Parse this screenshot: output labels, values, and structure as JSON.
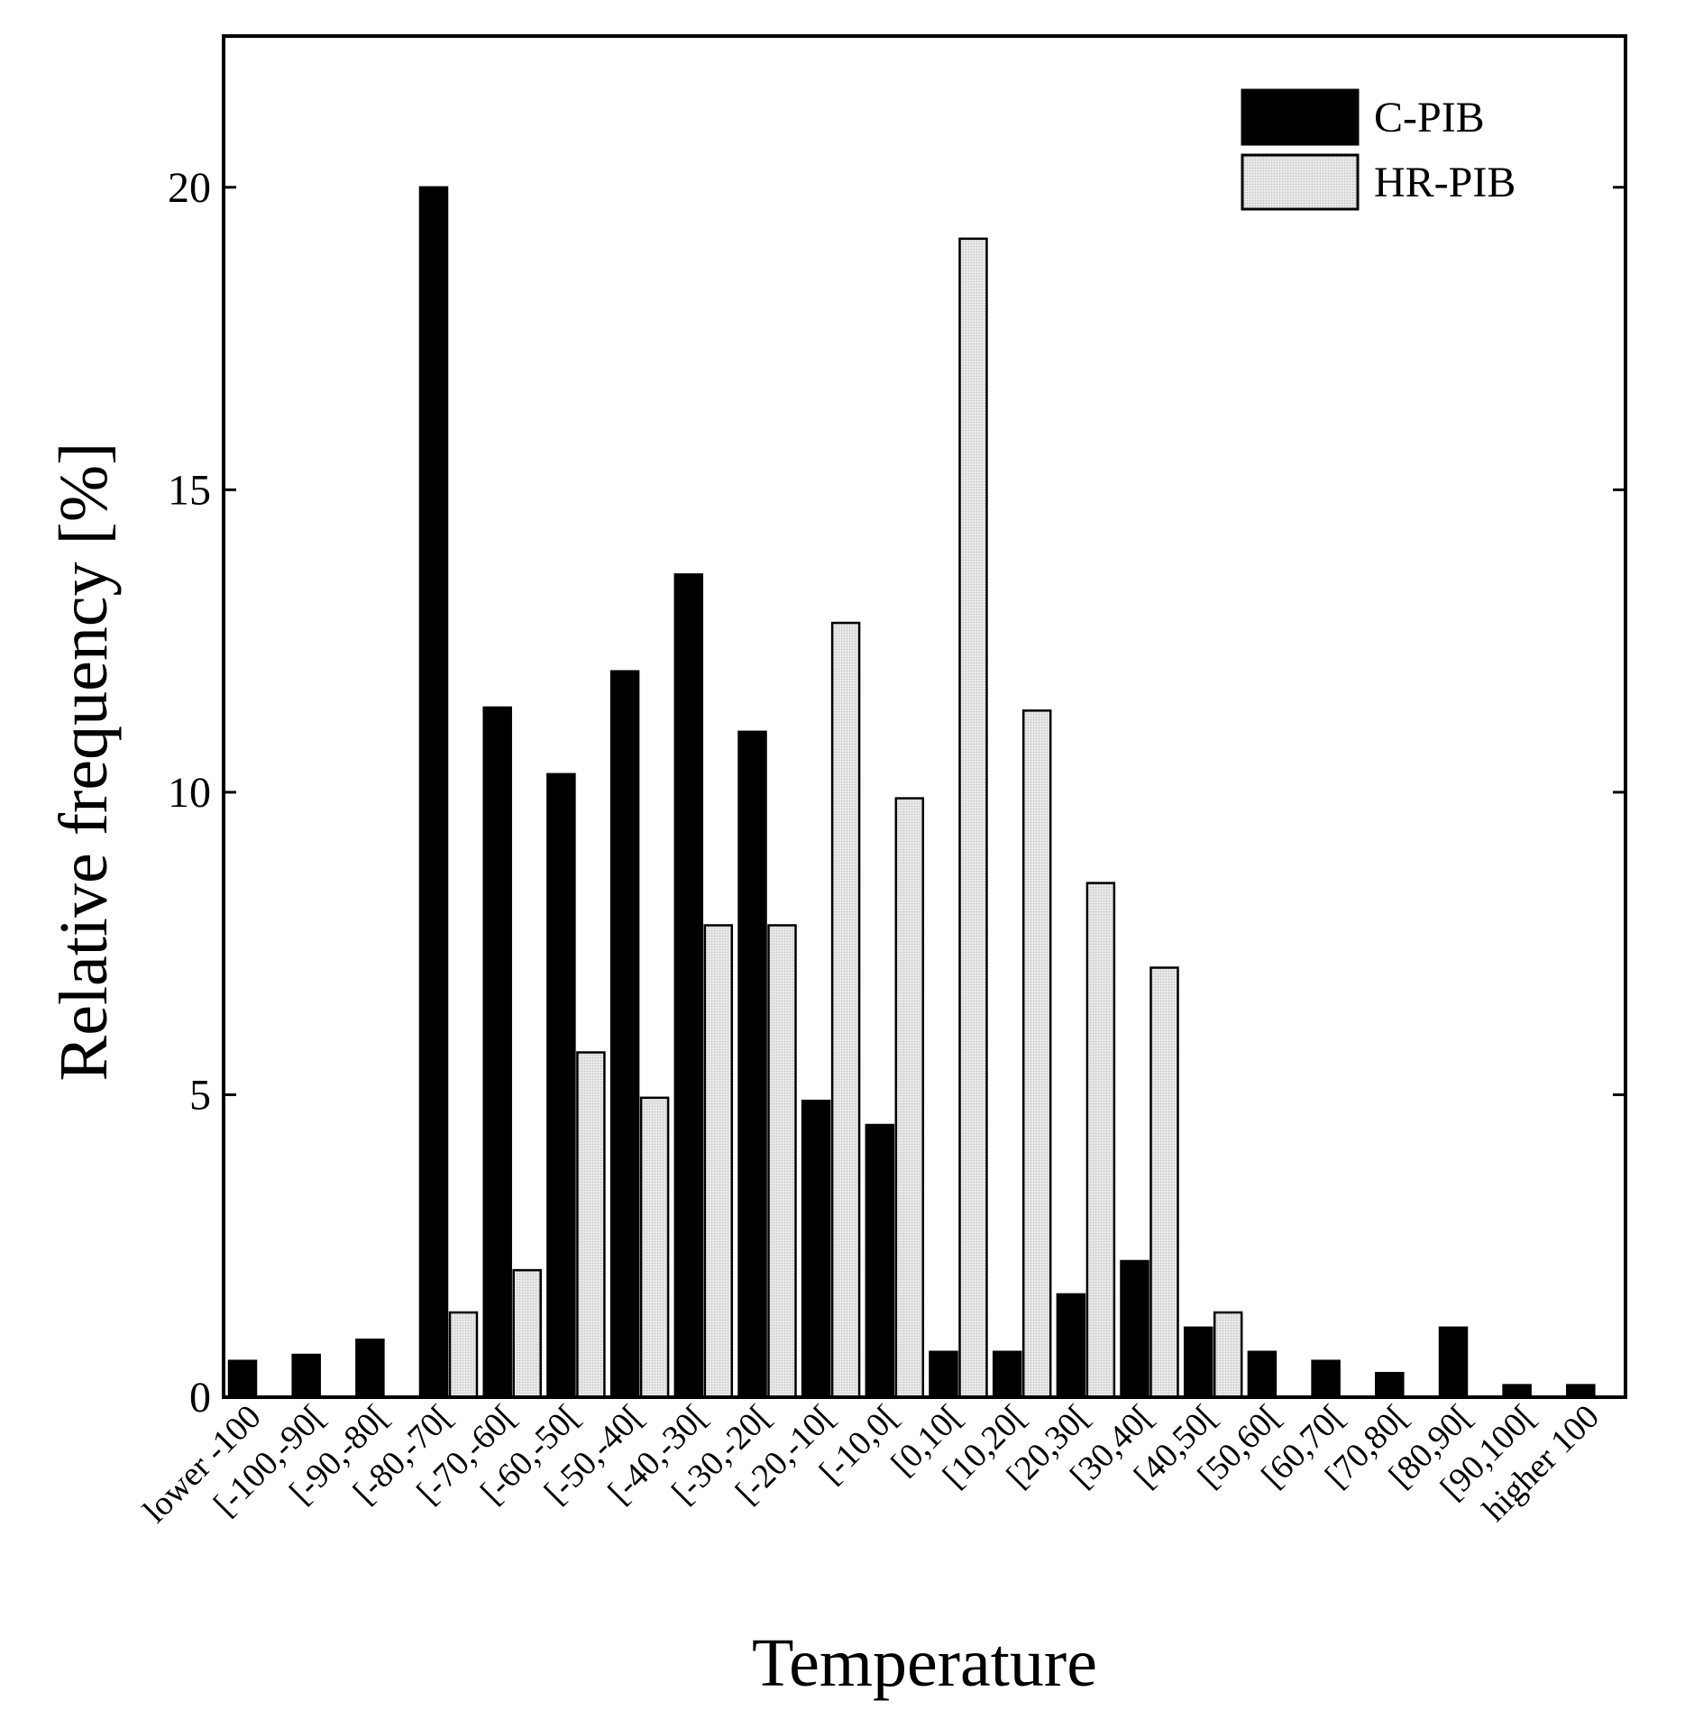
{
  "chart_data": {
    "type": "bar",
    "title": "",
    "xlabel": "Temperature",
    "ylabel": "Relative frequency [%]",
    "ylim": [
      0,
      22.5
    ],
    "yticks": [
      "0",
      "5",
      "10",
      "15",
      "20"
    ],
    "grid": false,
    "legend_position": "top-right",
    "categories": [
      "lower -100",
      "[-100,-90[",
      "[-90,-80[",
      "[-80,-70[",
      "[-70,-60[",
      "[-60,-50[",
      "[-50,-40[",
      "[-40,-30[",
      "[-30,-20[",
      "[-20,-10[",
      "[-10,0[",
      "[0,10[",
      "[10,20[",
      "[20,30[",
      "[30,40[",
      "[40,50[",
      "[50,60[",
      "[60,70[",
      "[70,80[",
      "[80,90[",
      "[90,100[",
      "higher 100"
    ],
    "series": [
      {
        "name": "C-PIB",
        "color": "#000000",
        "values": [
          0.6,
          0.7,
          0.95,
          20.0,
          11.4,
          10.3,
          12.0,
          13.6,
          11.0,
          4.9,
          4.5,
          0.75,
          0.75,
          1.7,
          2.25,
          1.15,
          0.75,
          0.6,
          0.4,
          1.15,
          0.2,
          0.2
        ]
      },
      {
        "name": "HR-PIB",
        "color": "#dcdcdc",
        "values": [
          0,
          0,
          0,
          1.4,
          2.1,
          5.7,
          4.95,
          7.8,
          7.8,
          12.8,
          9.9,
          19.15,
          11.35,
          8.5,
          7.1,
          1.4,
          0,
          0,
          0,
          0,
          0,
          0
        ]
      }
    ]
  }
}
